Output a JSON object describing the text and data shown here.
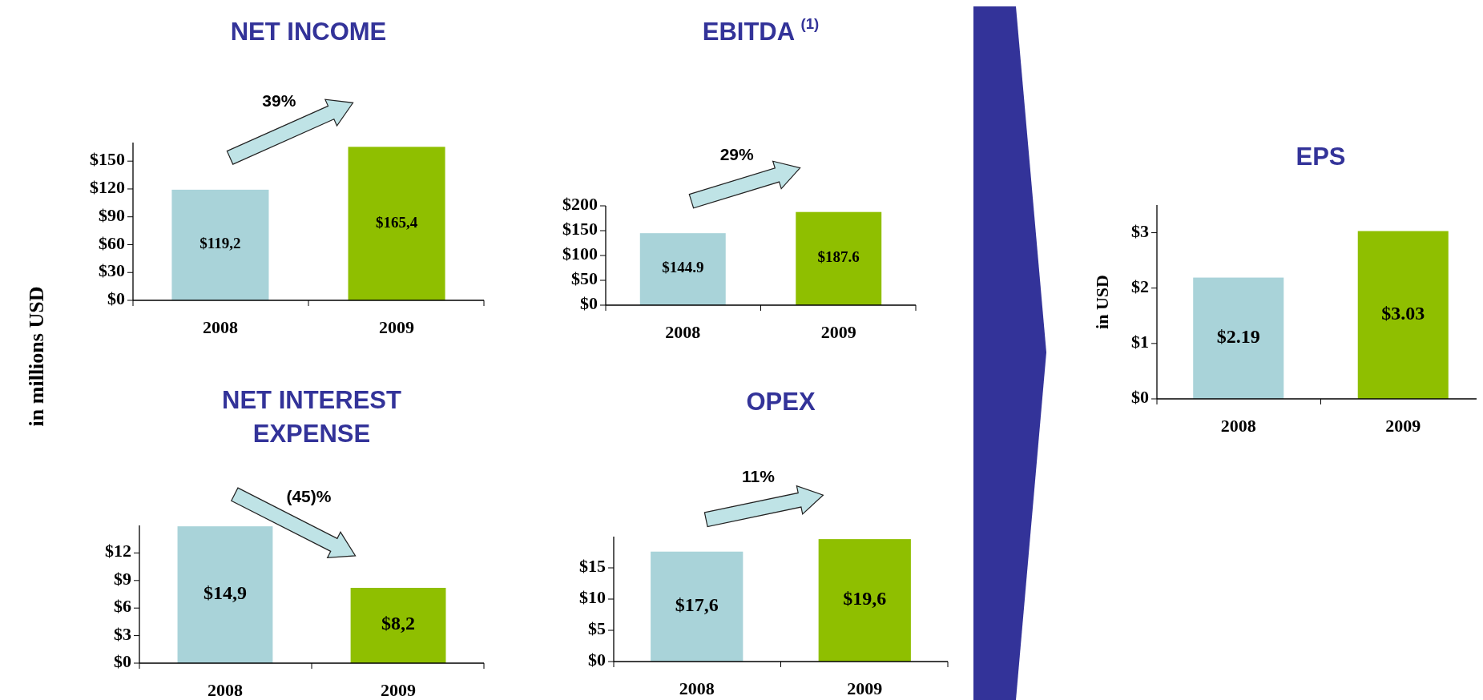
{
  "chart_data": [
    {
      "type": "bar",
      "title": "NET INCOME",
      "ylabel": "in millions USD",
      "categories": [
        "2008",
        "2009"
      ],
      "values": [
        119.2,
        165.4
      ],
      "value_labels": [
        "$119,2",
        "$165,4"
      ],
      "colors": [
        "#a9d3d9",
        "#8fbf00"
      ],
      "ylim": [
        0,
        170
      ],
      "yticks": [
        {
          "value": 0,
          "label": "$0"
        },
        {
          "value": 30,
          "label": "$30"
        },
        {
          "value": 60,
          "label": "$60"
        },
        {
          "value": 90,
          "label": "$90"
        },
        {
          "value": 120,
          "label": "$120"
        },
        {
          "value": 150,
          "label": "$150"
        }
      ],
      "annotations": [
        "39%"
      ]
    },
    {
      "type": "bar",
      "title": "EBITDA $^{(1)}$",
      "categories": [
        "2008",
        "2009"
      ],
      "values": [
        144.9,
        187.6
      ],
      "value_labels": [
        "$144.9",
        "$187.6"
      ],
      "colors": [
        "#a9d3d9",
        "#8fbf00"
      ],
      "ylim": [
        0,
        200
      ],
      "yticks": [
        {
          "value": 0,
          "label": "$0"
        },
        {
          "value": 50,
          "label": "$50"
        },
        {
          "value": 100,
          "label": "$100"
        },
        {
          "value": 150,
          "label": "$150"
        },
        {
          "value": 200,
          "label": "$200"
        }
      ],
      "annotations": [
        "29%"
      ]
    },
    {
      "type": "bar",
      "title": "NET INTEREST EXPENSE",
      "categories": [
        "2008",
        "2009"
      ],
      "values": [
        14.9,
        8.2
      ],
      "value_labels": [
        "$14,9",
        "$8,2"
      ],
      "colors": [
        "#a9d3d9",
        "#8fbf00"
      ],
      "ylim": [
        0,
        15
      ],
      "yticks": [
        {
          "value": 0,
          "label": "$0"
        },
        {
          "value": 3,
          "label": "$3"
        },
        {
          "value": 6,
          "label": "$6"
        },
        {
          "value": 9,
          "label": "$9"
        },
        {
          "value": 12,
          "label": "$12"
        }
      ],
      "annotations": [
        "(45)%"
      ]
    },
    {
      "type": "bar",
      "title": "OPEX",
      "categories": [
        "2008",
        "2009"
      ],
      "values": [
        17.6,
        19.6
      ],
      "value_labels": [
        "$17,6",
        "$19,6"
      ],
      "colors": [
        "#a9d3d9",
        "#8fbf00"
      ],
      "ylim": [
        0,
        20
      ],
      "yticks": [
        {
          "value": 0,
          "label": "$0"
        },
        {
          "value": 5,
          "label": "$5"
        },
        {
          "value": 10,
          "label": "$10"
        },
        {
          "value": 15,
          "label": "$15"
        }
      ],
      "annotations": [
        "11%"
      ]
    },
    {
      "type": "bar",
      "title": "EPS",
      "ylabel": "in USD",
      "categories": [
        "2008",
        "2009"
      ],
      "values": [
        2.19,
        3.03
      ],
      "value_labels": [
        "$2.19",
        "$3.03"
      ],
      "colors": [
        "#a9d3d9",
        "#8fbf00"
      ],
      "ylim": [
        0,
        3.5
      ],
      "yticks": [
        {
          "value": 0,
          "label": "$0"
        },
        {
          "value": 1,
          "label": "$1"
        },
        {
          "value": 2,
          "label": "$2"
        },
        {
          "value": 3,
          "label": "$3"
        }
      ]
    }
  ]
}
